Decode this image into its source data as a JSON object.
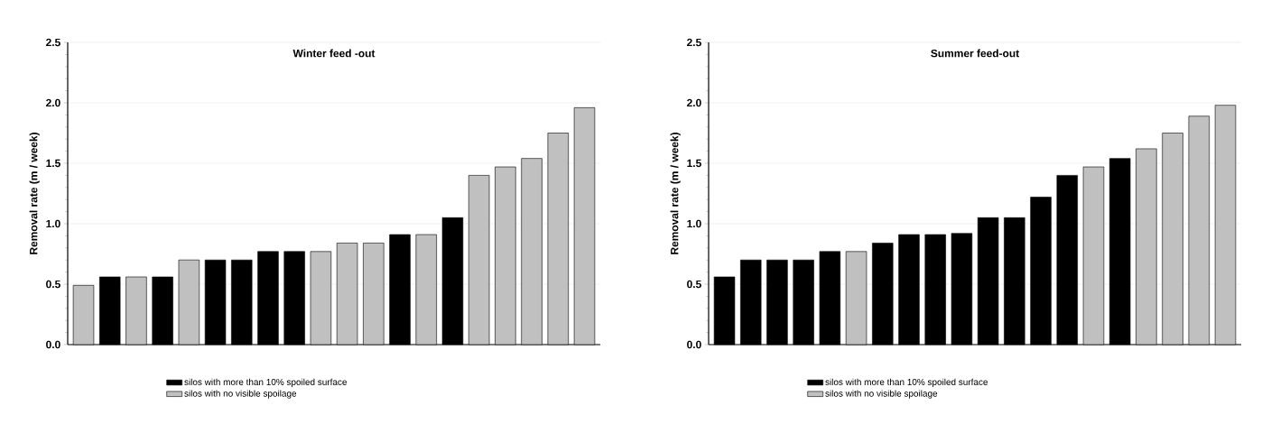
{
  "chart_data": [
    {
      "type": "bar",
      "title": "Winter feed -out",
      "ylabel": "Removal rate (m / week)",
      "categories": [
        null,
        null,
        null,
        null,
        null,
        null,
        null,
        null,
        null,
        null,
        null,
        null,
        null,
        null,
        null,
        null,
        null,
        null,
        null,
        null
      ],
      "series": [
        {
          "name": "silos with more than 10% spoiled surface",
          "color": "#000000",
          "values": [
            null,
            0.56,
            null,
            0.56,
            null,
            0.7,
            0.7,
            0.77,
            0.77,
            null,
            null,
            null,
            0.91,
            null,
            1.05,
            null,
            null,
            null,
            null,
            null
          ]
        },
        {
          "name": "silos with no visible spoilage",
          "color": "#c0c0c0",
          "values": [
            0.49,
            null,
            0.56,
            null,
            0.7,
            null,
            null,
            null,
            null,
            0.77,
            0.84,
            0.84,
            null,
            0.91,
            null,
            1.4,
            1.47,
            1.54,
            1.75,
            1.96
          ]
        }
      ],
      "ylim": [
        0,
        2.5
      ],
      "yticks": [
        {
          "value": 0,
          "label": "0.0"
        },
        0.5,
        {
          "value": 1,
          "label": "1.0"
        },
        1.5,
        {
          "value": 2,
          "label": "2.0"
        },
        2.5
      ],
      "grid": "y",
      "legend": "bottom"
    },
    {
      "type": "bar",
      "title": "Summer feed-out",
      "ylabel": "Removal rate (m / week)",
      "categories": [
        null,
        null,
        null,
        null,
        null,
        null,
        null,
        null,
        null,
        null,
        null,
        null,
        null,
        null,
        null,
        null,
        null,
        null,
        null,
        null
      ],
      "series": [
        {
          "name": "silos with more than 10% spoiled surface",
          "color": "#000000",
          "values": [
            0.56,
            0.7,
            0.7,
            0.7,
            0.77,
            null,
            0.84,
            0.91,
            0.91,
            0.92,
            1.05,
            1.05,
            1.22,
            1.4,
            null,
            1.54,
            null,
            null,
            null,
            null
          ]
        },
        {
          "name": "silos with no visible spoilage",
          "color": "#c0c0c0",
          "values": [
            null,
            null,
            null,
            null,
            null,
            0.77,
            null,
            null,
            null,
            null,
            null,
            null,
            null,
            null,
            1.47,
            null,
            1.62,
            1.75,
            1.89,
            1.98
          ]
        }
      ],
      "ylim": [
        0,
        2.5
      ],
      "yticks": [
        {
          "value": 0,
          "label": "0.0"
        },
        0.5,
        {
          "value": 1,
          "label": "1.0"
        },
        1.5,
        {
          "value": 2,
          "label": "2.0"
        },
        2.5
      ],
      "grid": "y",
      "legend": "bottom"
    }
  ]
}
